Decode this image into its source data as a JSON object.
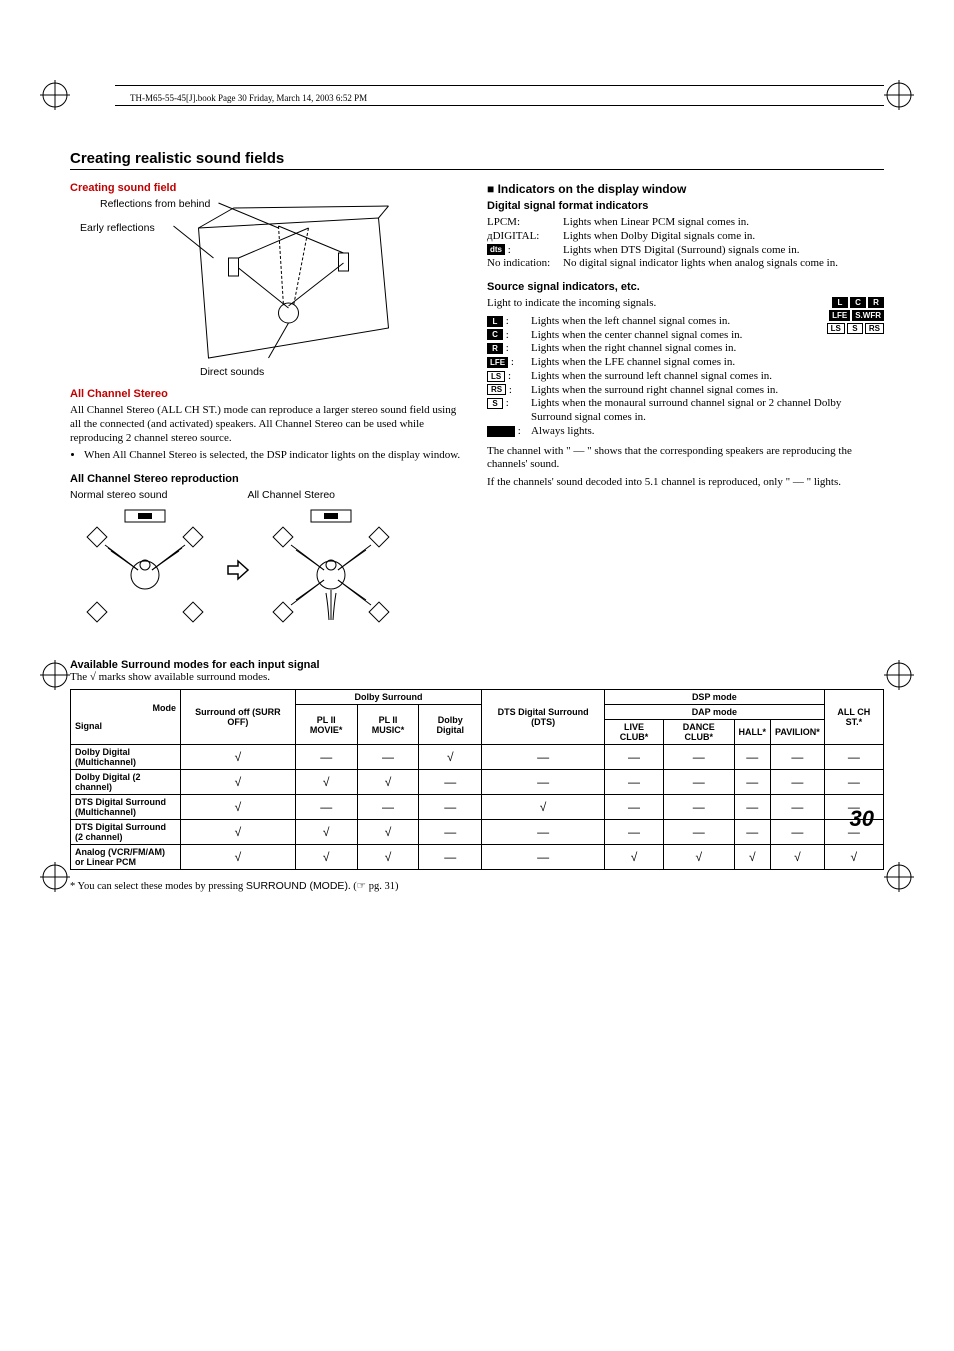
{
  "print_info": "TH-M65-55-45[J].book  Page 30  Friday, March 14, 2003  6:52 PM",
  "section_title": "Creating realistic sound fields",
  "sound_field": {
    "title": "Creating sound field",
    "label_reflections": "Reflections from behind",
    "label_early": "Early reflections",
    "label_direct": "Direct sounds"
  },
  "all_ch_stereo": {
    "title": "All Channel Stereo",
    "p1": "All Channel Stereo (ALL CH ST.) mode can reproduce a larger stereo sound field using all the connected (and activated) speakers. All Channel Stereo can be used while reproducing 2 channel stereo source.",
    "bullet1": "When All Channel Stereo is selected, the DSP indicator lights on the display window.",
    "repro_title": "All Channel Stereo reproduction",
    "label_normal": "Normal stereo sound",
    "label_allch": "All Channel Stereo"
  },
  "indicators": {
    "title": "Indicators on the display window",
    "digital_title": "Digital signal format indicators",
    "items": [
      {
        "key": "LPCM:",
        "val": "Lights when Linear PCM signal comes in."
      },
      {
        "key": "дDIGITAL:",
        "val": "Lights when Dolby Digital signals come in."
      },
      {
        "key": "dts:",
        "val": "Lights when DTS Digital (Surround) signals come in."
      },
      {
        "key": "No indication:",
        "val": "No digital signal indicator lights when analog signals come in."
      }
    ],
    "source_title": "Source signal indicators, etc.",
    "source_intro": "Light to indicate the incoming signals.",
    "source_items": [
      {
        "badge": "L",
        "val": "Lights when the left channel signal comes in."
      },
      {
        "badge": "C",
        "val": "Lights when the center channel signal comes in."
      },
      {
        "badge": "R",
        "val": "Lights when the right channel signal comes in."
      },
      {
        "badge": "LFE",
        "val": "Lights when the LFE channel signal comes in."
      },
      {
        "badge": "LS",
        "val": "Lights when the surround left channel signal comes in."
      },
      {
        "badge": "RS",
        "val": "Lights when the surround right channel signal comes in."
      },
      {
        "badge": "S",
        "val": "Lights when the monaural surround channel signal or 2 channel Dolby Surround signal comes in."
      }
    ],
    "always": "Always lights.",
    "channel_note1": "The channel with \" — \" shows that the corresponding speakers are reproducing the channels' sound.",
    "channel_note2": "If the channels' sound decoded into 5.1 channel is reproduced, only \" — \" lights."
  },
  "table": {
    "title": "Available Surround modes for each input signal",
    "note": "The √ marks show available surround modes.",
    "headers": {
      "mode": "Mode",
      "signal": "Signal",
      "surr_off": "Surround off (SURR OFF)",
      "dolby_surround": "Dolby Surround",
      "pl_movie": "PL II MOVIE*",
      "pl_music": "PL II MUSIC*",
      "dolby_digital": "Dolby Digital",
      "dts": "DTS Digital Surround (DTS)",
      "dsp_mode": "DSP mode",
      "dap_mode": "DAP mode",
      "live_club": "LIVE CLUB*",
      "dance_club": "DANCE CLUB*",
      "hall": "HALL*",
      "pavilion": "PAVILION*",
      "all_ch_st": "ALL CH ST.*"
    },
    "rows": [
      {
        "signal": "Dolby Digital (Multichannel)",
        "cells": [
          "√",
          "—",
          "—",
          "√",
          "—",
          "—",
          "—",
          "—",
          "—",
          "—"
        ]
      },
      {
        "signal": "Dolby Digital (2 channel)",
        "cells": [
          "√",
          "√",
          "√",
          "—",
          "—",
          "—",
          "—",
          "—",
          "—",
          "—"
        ]
      },
      {
        "signal": "DTS Digital Surround (Multichannel)",
        "cells": [
          "√",
          "—",
          "—",
          "—",
          "√",
          "—",
          "—",
          "—",
          "—",
          "—"
        ]
      },
      {
        "signal": "DTS Digital Surround (2 channel)",
        "cells": [
          "√",
          "√",
          "√",
          "—",
          "—",
          "—",
          "—",
          "—",
          "—",
          "—"
        ]
      },
      {
        "signal": "Analog (VCR/FM/AM) or Linear PCM",
        "cells": [
          "√",
          "√",
          "√",
          "—",
          "—",
          "√",
          "√",
          "√",
          "√",
          "√"
        ]
      }
    ],
    "footnote_prefix": "* You can select these modes by pressing ",
    "footnote_button": "SURROUND (MODE)",
    "footnote_suffix": ". (☞ pg. 31)"
  },
  "page_number": "30",
  "colors": {
    "red": "#c00000",
    "text": "#000000",
    "background": "#ffffff"
  }
}
